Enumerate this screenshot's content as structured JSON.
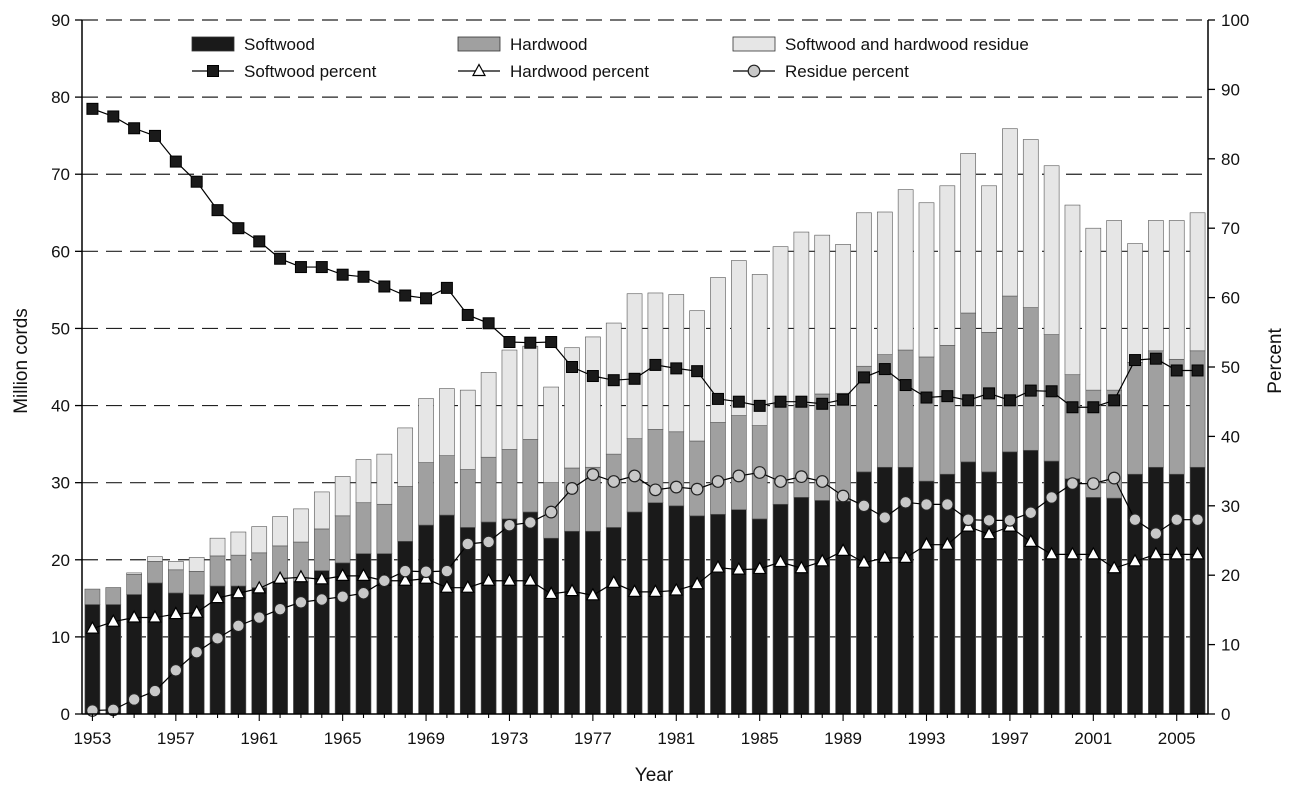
{
  "chart_data": {
    "type": "bar",
    "stacked": true,
    "title": "",
    "xlabel": "Year",
    "ylabel": "Million cords",
    "y2label": "Percent",
    "ylim": [
      0,
      90
    ],
    "y2lim": [
      0,
      100
    ],
    "yticks": [
      "0",
      "10",
      "20",
      "30",
      "40",
      "50",
      "60",
      "70",
      "80",
      "90"
    ],
    "y2ticks": [
      "0",
      "10",
      "20",
      "30",
      "40",
      "50",
      "60",
      "70",
      "80",
      "90",
      "100"
    ],
    "xtick_labels": [
      "1953",
      "1957",
      "1961",
      "1965",
      "1969",
      "1973",
      "1977",
      "1981",
      "1985",
      "1989",
      "1993",
      "1997",
      "2001",
      "2005"
    ],
    "grid": "horizontal dashed",
    "legend_placement": "top",
    "categories": [
      "1953",
      "1954",
      "1955",
      "1956",
      "1957",
      "1958",
      "1959",
      "1960",
      "1961",
      "1962",
      "1963",
      "1964",
      "1965",
      "1966",
      "1967",
      "1968",
      "1969",
      "1970",
      "1971",
      "1972",
      "1973",
      "1974",
      "1975",
      "1976",
      "1977",
      "1978",
      "1979",
      "1980",
      "1981",
      "1982",
      "1983",
      "1984",
      "1985",
      "1986",
      "1987",
      "1988",
      "1989",
      "1990",
      "1991",
      "1992",
      "1993",
      "1994",
      "1995",
      "1996",
      "1997",
      "1998",
      "1999",
      "2000",
      "2001",
      "2002",
      "2003",
      "2004",
      "2005",
      "2006"
    ],
    "series": [
      {
        "name": "Softwood",
        "kind": "bar",
        "axis": "left",
        "color": "#1a1a1a",
        "values": [
          14.2,
          14.2,
          15.5,
          17,
          15.7,
          15.5,
          16.6,
          16.6,
          16.4,
          17.2,
          17.2,
          18.6,
          19.6,
          20.8,
          20.8,
          22.4,
          24.5,
          25.8,
          24.2,
          24.9,
          25.3,
          26.2,
          22.8,
          23.7,
          23.7,
          24.2,
          26.2,
          27.4,
          27,
          25.7,
          25.9,
          26.5,
          25.3,
          27.2,
          28.1,
          27.7,
          27.6,
          31.4,
          32,
          32,
          30.2,
          31.1,
          32.7,
          31.4,
          34,
          34.2,
          32.8,
          30.5,
          28.1,
          28,
          31.1,
          32,
          31.1,
          32
        ]
      },
      {
        "name": "Hardwood",
        "kind": "bar",
        "axis": "left",
        "color": "#a0a0a0",
        "values": [
          2,
          2.2,
          2.6,
          2.8,
          3,
          3,
          3.9,
          4,
          4.5,
          4.6,
          5.1,
          5.4,
          6.1,
          6.6,
          6.4,
          7.1,
          8.1,
          7.7,
          7.5,
          8.4,
          9,
          9.4,
          7.2,
          8.2,
          8.3,
          9.5,
          9.5,
          9.5,
          9.6,
          9.7,
          11.9,
          12.2,
          12.1,
          13,
          12,
          13.8,
          14,
          13.7,
          14.6,
          15.2,
          16.1,
          16.7,
          19.3,
          18.1,
          20.2,
          18.5,
          16.4,
          13.5,
          13.9,
          14,
          14.5,
          15.1,
          14.9,
          15.1
        ]
      },
      {
        "name": "Softwood and hardwood residue",
        "kind": "bar",
        "axis": "left",
        "color": "#e6e6e6",
        "values": [
          0,
          0,
          0.2,
          0.6,
          1.1,
          1.8,
          2.3,
          3,
          3.4,
          3.8,
          4.3,
          4.8,
          5.1,
          5.6,
          6.5,
          7.6,
          8.3,
          8.7,
          10.3,
          11,
          12.9,
          12.1,
          12.4,
          15.6,
          16.9,
          17,
          18.8,
          17.7,
          17.8,
          16.9,
          18.8,
          20.1,
          19.6,
          20.4,
          22.4,
          20.6,
          19.3,
          19.9,
          18.5,
          20.8,
          20,
          20.7,
          20.7,
          19,
          21.7,
          21.8,
          21.9,
          22,
          21,
          22,
          15.4,
          16.9,
          18,
          17.9
        ]
      },
      {
        "name": "Softwood percent",
        "kind": "line",
        "axis": "right",
        "marker": "square",
        "color": "#1a1a1a",
        "values": [
          87.2,
          86.1,
          84.4,
          83.3,
          79.6,
          76.7,
          72.6,
          70,
          68.1,
          65.6,
          64.4,
          64.4,
          63.3,
          63,
          61.6,
          60.3,
          59.9,
          61.4,
          57.5,
          56.3,
          53.6,
          53.5,
          53.6,
          50,
          48.7,
          48.1,
          48.3,
          50.3,
          49.8,
          49.4,
          45.4,
          45,
          44.4,
          45,
          45,
          44.7,
          45.3,
          48.5,
          49.7,
          47.4,
          45.6,
          45.8,
          45.2,
          46.2,
          45.2,
          46.6,
          46.5,
          44.2,
          44.2,
          45.2,
          51,
          51.2,
          49.5,
          49.5
        ]
      },
      {
        "name": "Hardwood percent",
        "kind": "line",
        "axis": "right",
        "marker": "triangle",
        "color": "#ffffff",
        "values": [
          12.3,
          13.3,
          13.9,
          13.9,
          14.4,
          14.6,
          16.7,
          17.4,
          18.1,
          19.5,
          19.7,
          19.4,
          19.9,
          19.9,
          19.2,
          19.2,
          19.5,
          18.2,
          18.2,
          19.2,
          19.2,
          19.2,
          17.3,
          17.7,
          17.1,
          18.9,
          17.6,
          17.6,
          17.8,
          18.7,
          21.1,
          20.8,
          20.9,
          21.9,
          21,
          22,
          23.5,
          21.8,
          22.5,
          22.5,
          24.4,
          24.4,
          27,
          25.9,
          27,
          24.8,
          23,
          23,
          23,
          21,
          22,
          23,
          23,
          23
        ]
      },
      {
        "name": "Residue percent",
        "kind": "line",
        "axis": "right",
        "marker": "circle",
        "color": "#c8c8c8",
        "values": [
          0.5,
          0.6,
          2.1,
          3.3,
          6.3,
          8.9,
          10.9,
          12.7,
          13.9,
          15.1,
          16.1,
          16.5,
          16.9,
          17.4,
          19.2,
          20.6,
          20.5,
          20.6,
          24.5,
          24.8,
          27.2,
          27.6,
          29.1,
          32.5,
          34.5,
          33.5,
          34.3,
          32.3,
          32.7,
          32.4,
          33.5,
          34.3,
          34.8,
          33.5,
          34.2,
          33.5,
          31.4,
          30,
          28.3,
          30.5,
          30.2,
          30.2,
          28,
          27.9,
          27.9,
          29,
          31.2,
          33.2,
          33.2,
          34,
          28,
          26,
          28,
          28
        ]
      }
    ]
  }
}
